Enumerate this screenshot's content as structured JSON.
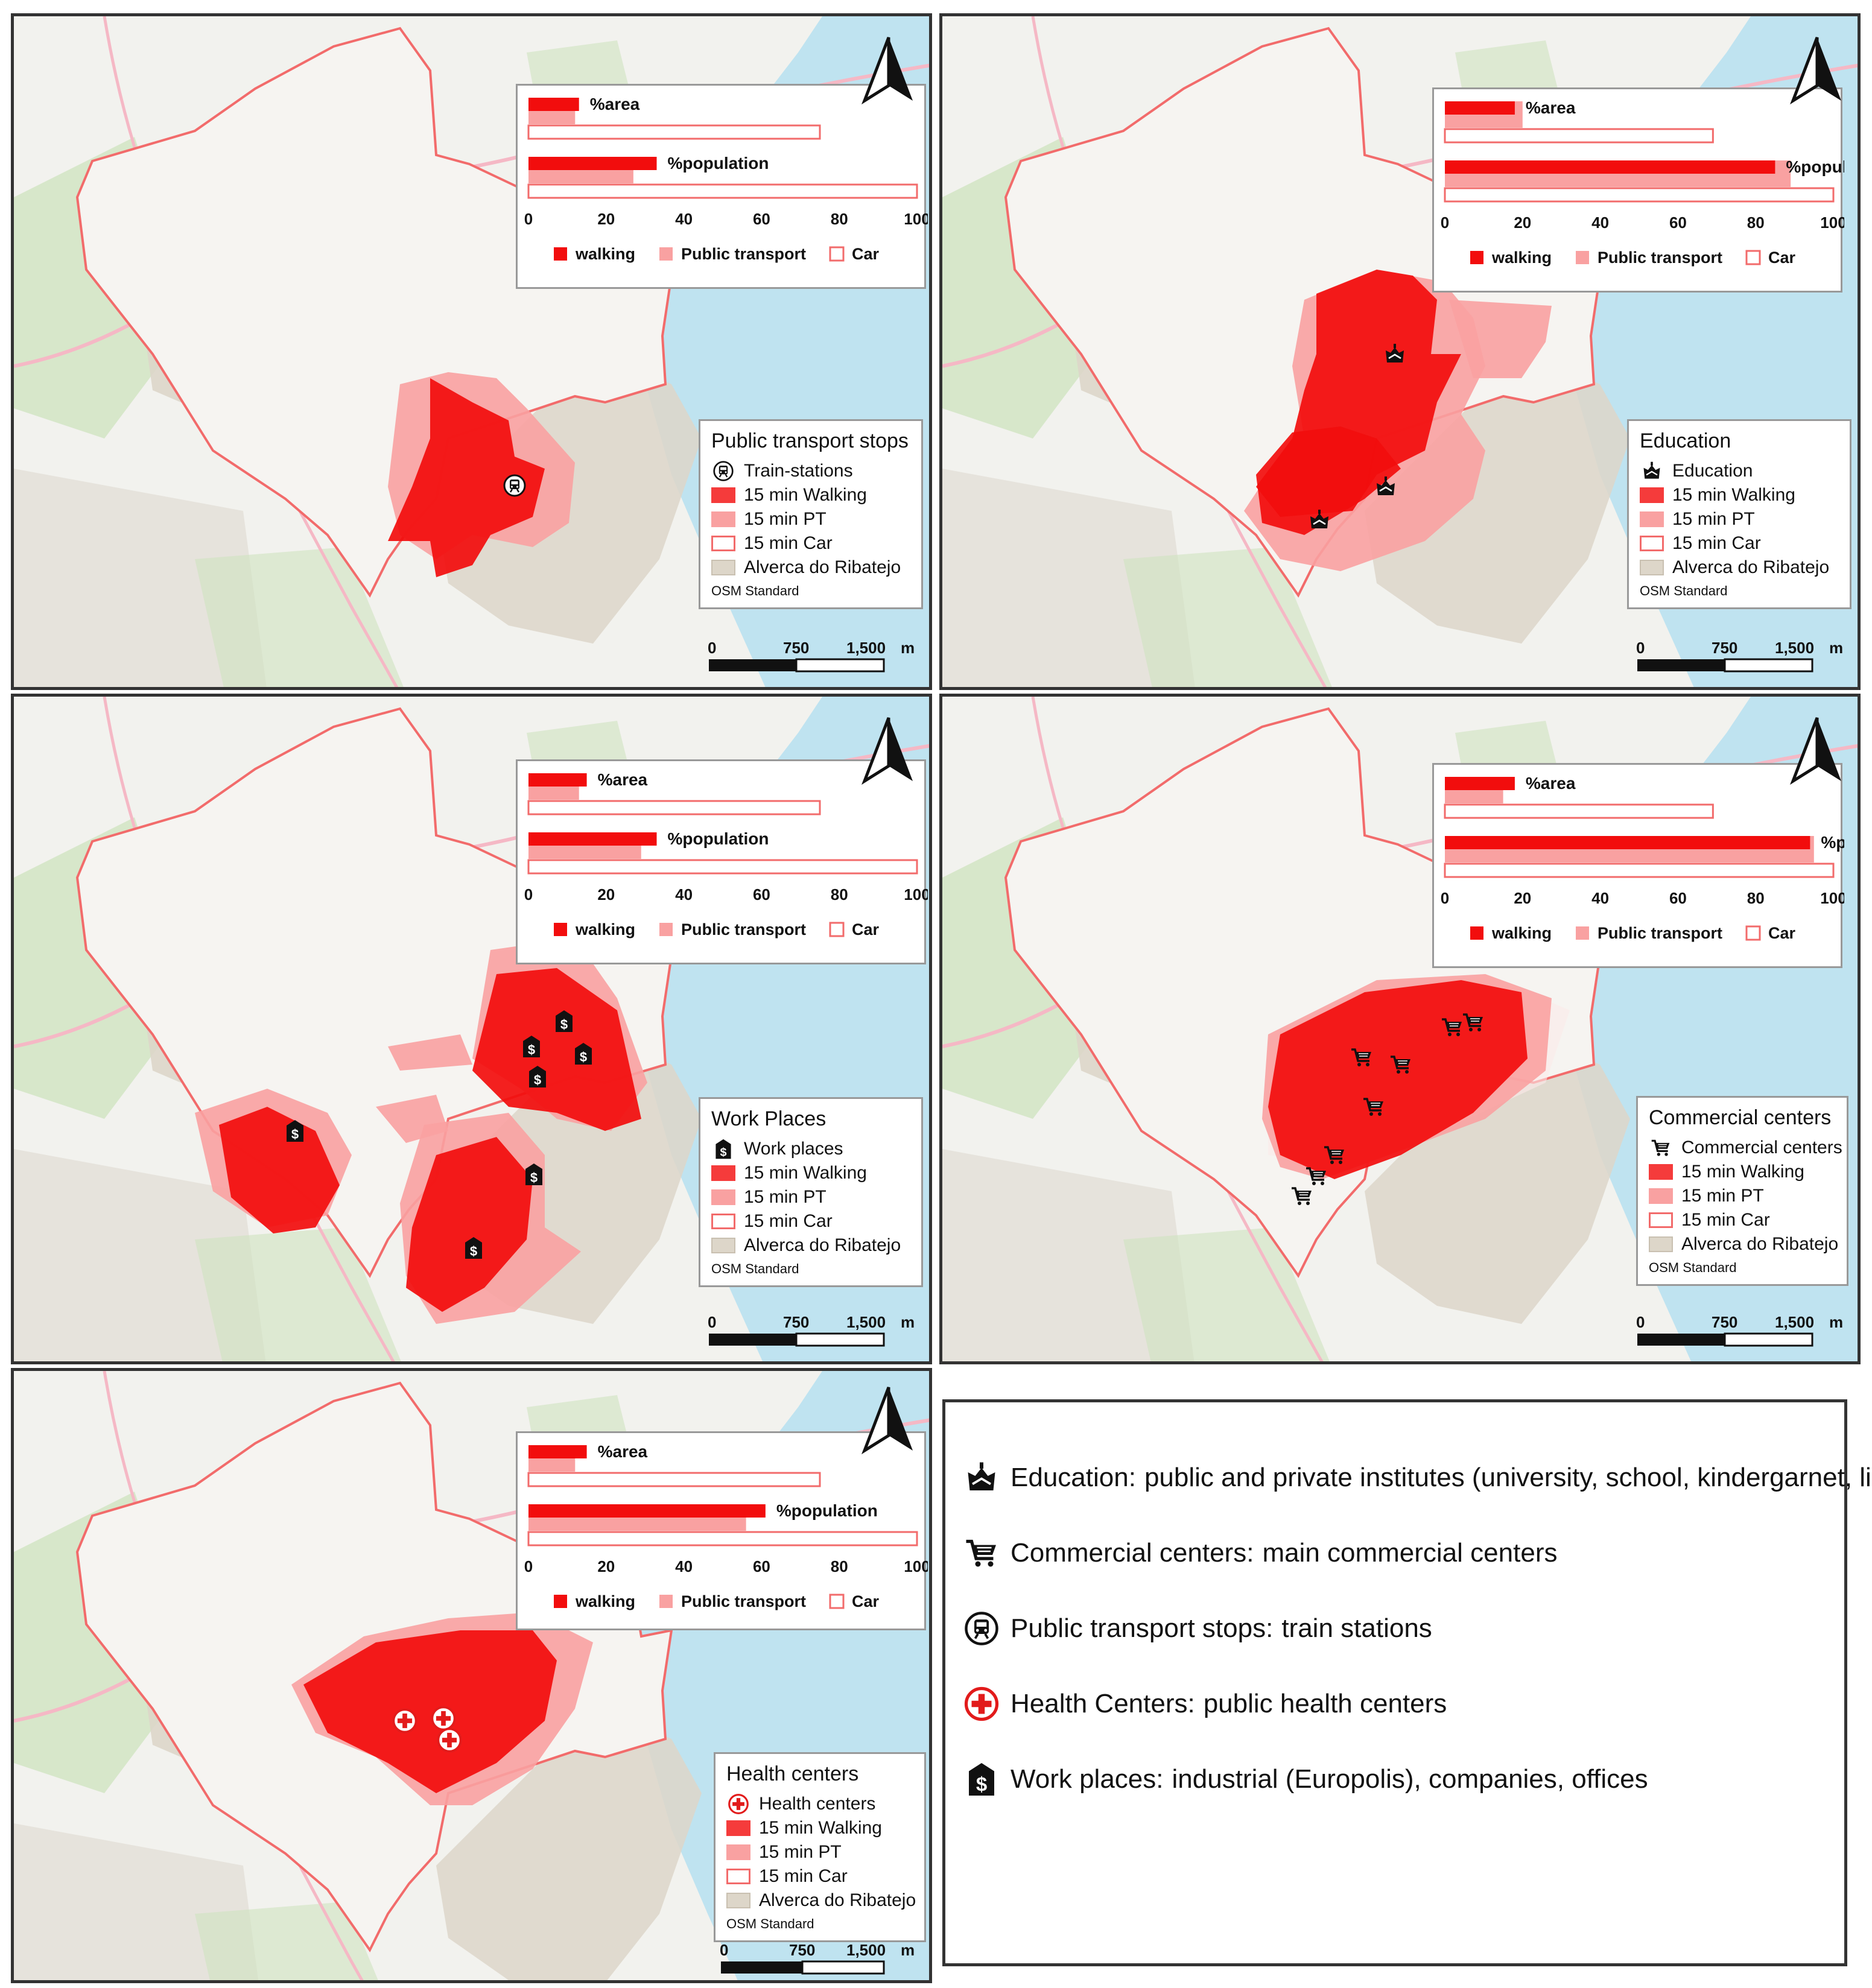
{
  "legend_labels": {
    "walking_15": "15 min Walking",
    "pt_15": "15 min PT",
    "car_15": "15 min Car",
    "alverca": "Alverca do Ribatejo",
    "basemap": "OSM Standard"
  },
  "chart_labels": {
    "area": "%area",
    "population": "%population",
    "ticks": [
      "0",
      "20",
      "40",
      "60",
      "80",
      "100"
    ],
    "legend_walking": "walking",
    "legend_pt": "Public transport",
    "legend_car": "Car"
  },
  "scale": {
    "labels": [
      "0",
      "750",
      "1,500",
      "m"
    ]
  },
  "colors": {
    "walking": "#f20d0d",
    "pt": "#f9a1a1",
    "car_outline": "#f26b6b",
    "alverca": "#ddd6c9",
    "river": "#bfe3f0",
    "green": "#cfe3c0"
  },
  "panels": [
    {
      "id": "transport",
      "title": "Public transport stops",
      "poi_label": "Train-stations",
      "poi_icon": "train-icon",
      "chart_data": {
        "type": "bar",
        "categories": [
          "%area",
          "%population"
        ],
        "xlim": [
          0,
          100
        ],
        "series": [
          {
            "name": "walking",
            "values": [
              13,
              33
            ]
          },
          {
            "name": "Public transport",
            "values": [
              12,
              27
            ]
          },
          {
            "name": "Car",
            "values": [
              75,
              100
            ]
          }
        ]
      }
    },
    {
      "id": "education",
      "title": "Education",
      "poi_label": "Education",
      "poi_icon": "education-icon",
      "chart_data": {
        "type": "bar",
        "categories": [
          "%area",
          "%population"
        ],
        "xlim": [
          0,
          100
        ],
        "series": [
          {
            "name": "walking",
            "values": [
              18,
              85
            ]
          },
          {
            "name": "Public transport",
            "values": [
              20,
              89
            ]
          },
          {
            "name": "Car",
            "values": [
              69,
              100
            ]
          }
        ]
      }
    },
    {
      "id": "work",
      "title": "Work Places",
      "poi_label": "Work places",
      "poi_icon": "work-icon",
      "chart_data": {
        "type": "bar",
        "categories": [
          "%area",
          "%population"
        ],
        "xlim": [
          0,
          100
        ],
        "series": [
          {
            "name": "walking",
            "values": [
              15,
              33
            ]
          },
          {
            "name": "Public transport",
            "values": [
              13,
              29
            ]
          },
          {
            "name": "Car",
            "values": [
              75,
              100
            ]
          }
        ]
      }
    },
    {
      "id": "commercial",
      "title": "Commercial centers",
      "poi_label": "Commercial centers",
      "poi_icon": "cart-icon",
      "chart_data": {
        "type": "bar",
        "categories": [
          "%area",
          "%population"
        ],
        "xlim": [
          0,
          100
        ],
        "series": [
          {
            "name": "walking",
            "values": [
              18,
              94
            ]
          },
          {
            "name": "Public transport",
            "values": [
              15,
              95
            ]
          },
          {
            "name": "Car",
            "values": [
              69,
              100
            ]
          }
        ]
      }
    },
    {
      "id": "health",
      "title": "Health centers",
      "poi_label": "Health centers",
      "poi_icon": "health-icon",
      "chart_data": {
        "type": "bar",
        "categories": [
          "%area",
          "%population"
        ],
        "xlim": [
          0,
          100
        ],
        "series": [
          {
            "name": "walking",
            "values": [
              15,
              61
            ]
          },
          {
            "name": "Public transport",
            "values": [
              12,
              56
            ]
          },
          {
            "name": "Car",
            "values": [
              75,
              100
            ]
          }
        ]
      }
    }
  ],
  "key": [
    {
      "icon": "education-icon",
      "category": "Education:",
      "description": "public and private institutes (university, school, kindergarnet, library)"
    },
    {
      "icon": "cart-icon",
      "category": "Commercial centers:",
      "description": "main commercial centers"
    },
    {
      "icon": "train-icon",
      "category": "Public transport stops:",
      "description": "train stations"
    },
    {
      "icon": "health-icon",
      "category": "Health Centers:",
      "description": "public health centers"
    },
    {
      "icon": "work-icon",
      "category": "Work places:",
      "description": "industrial (Europolis), companies, offices"
    }
  ]
}
